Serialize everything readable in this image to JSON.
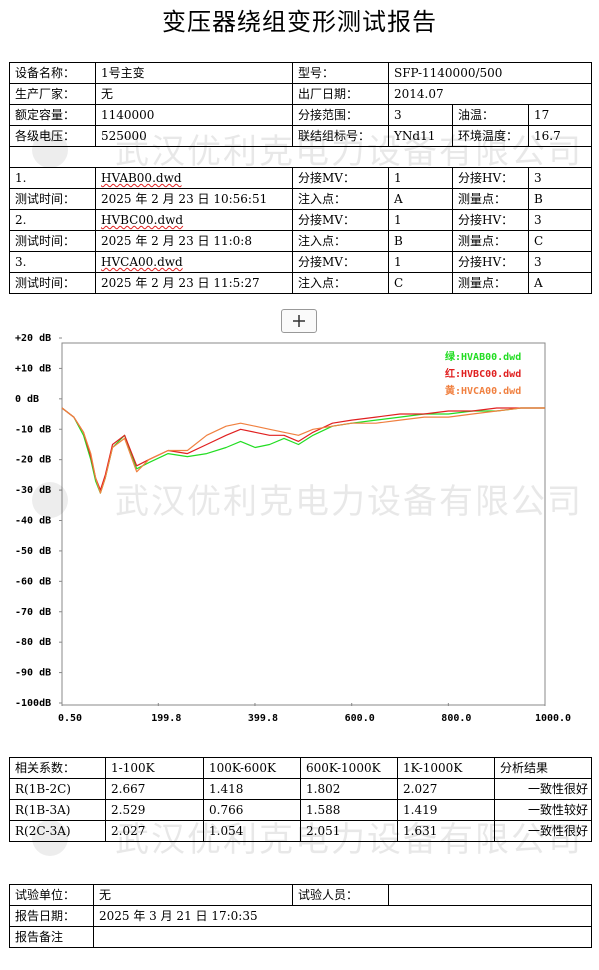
{
  "title": "变压器绕组变形测试报告",
  "watermark": "武汉优利克电力设备有限公司",
  "info_table": {
    "rows": [
      [
        "设备名称：",
        "1号主变",
        "型号：",
        "SFP-1140000/500"
      ],
      [
        "生产厂家：",
        "无",
        "出厂日期：",
        "2014.07"
      ],
      [
        "额定容量：",
        "1140000",
        "分接范围：",
        "3",
        "油温：",
        "17"
      ],
      [
        "各级电压：",
        "525000",
        "联结组标号：",
        "YNd11",
        "环境温度：",
        "16.7"
      ],
      [],
      [
        "1.",
        "HVAB00.dwd",
        "分接MV：",
        "1",
        "分接HV：",
        "3"
      ],
      [
        "测试时间：",
        "2025 年 2 月 23 日 10:56:51",
        "注入点：",
        "A",
        "测量点：",
        "B"
      ],
      [
        "2.",
        "HVBC00.dwd",
        "分接MV：",
        "1",
        "分接HV：",
        "3"
      ],
      [
        "测试时间：",
        "2025 年 2 月 23 日 11:0:8",
        "注入点：",
        "B",
        "测量点：",
        "C"
      ],
      [
        "3.",
        "HVCA00.dwd",
        "分接MV：",
        "1",
        "分接HV：",
        "3"
      ],
      [
        "测试时间：",
        "2025 年 2 月 23 日 11:5:27",
        "注入点：",
        "C",
        "测量点：",
        "A"
      ]
    ]
  },
  "chart_data": {
    "type": "line",
    "x": [
      0.5,
      25,
      45,
      60,
      70,
      80,
      90,
      105,
      130,
      155,
      180,
      220,
      260,
      300,
      340,
      370,
      400,
      430,
      460,
      490,
      520,
      560,
      600,
      650,
      700,
      750,
      800,
      850,
      900,
      950,
      1000
    ],
    "series": [
      {
        "name": "绿:HVAB00.dwd",
        "color": "#22dd22",
        "values": [
          -3,
          -6,
          -12,
          -20,
          -27,
          -31,
          -26,
          -16,
          -12,
          -23,
          -21,
          -18,
          -19,
          -18,
          -16,
          -14,
          -16,
          -15,
          -13,
          -15,
          -12,
          -9,
          -8,
          -7,
          -6,
          -5,
          -5,
          -4,
          -4,
          -3,
          -3
        ]
      },
      {
        "name": "红:HVBC00.dwd",
        "color": "#e02020",
        "values": [
          -3,
          -6,
          -11,
          -19,
          -26,
          -30,
          -25,
          -15,
          -12,
          -22,
          -20,
          -17,
          -18,
          -15,
          -12,
          -10,
          -11,
          -12,
          -12,
          -14,
          -11,
          -8,
          -7,
          -6,
          -5,
          -5,
          -4,
          -4,
          -3,
          -3,
          -3
        ]
      },
      {
        "name": "黄:HVCA00.dwd",
        "color": "#f08040",
        "values": [
          -3,
          -6,
          -11,
          -18,
          -26,
          -31,
          -26,
          -16,
          -13,
          -24,
          -20,
          -17,
          -17,
          -12,
          -9,
          -8,
          -9,
          -10,
          -11,
          -12,
          -10,
          -9,
          -8,
          -8,
          -7,
          -6,
          -6,
          -5,
          -4,
          -3,
          -3
        ]
      }
    ],
    "xlim": [
      0.5,
      1000
    ],
    "xticks": [
      {
        "value": 0.5,
        "label": "0.50"
      },
      199.8,
      399.8,
      {
        "value": 600,
        "label": "600.0"
      },
      {
        "value": 800,
        "label": "800.0"
      },
      {
        "value": 1000,
        "label": "1000.0"
      }
    ],
    "ylim": [
      -100,
      20
    ],
    "yticks": [
      {
        "value": 20,
        "label": "+20 dB"
      },
      {
        "value": 10,
        "label": "+10 dB"
      },
      {
        "value": 0,
        "label": "0 dB"
      },
      {
        "value": -10,
        "label": "-10 dB"
      },
      {
        "value": -20,
        "label": "-20 dB"
      },
      {
        "value": -30,
        "label": "-30 dB"
      },
      {
        "value": -40,
        "label": "-40 dB"
      },
      {
        "value": -50,
        "label": "-50 dB"
      },
      {
        "value": -60,
        "label": "-60 dB"
      },
      {
        "value": -70,
        "label": "-70 dB"
      },
      {
        "value": -80,
        "label": "-80 dB"
      },
      {
        "value": -90,
        "label": "-90 dB"
      },
      {
        "value": -100,
        "label": "-100dB"
      }
    ],
    "grid": false
  },
  "analysis_table": {
    "header": [
      "相关系数：",
      "1-100K",
      "100K-600K",
      "600K-1000K",
      "1K-1000K",
      "分析结果"
    ],
    "rows": [
      [
        "R(1B-2C)",
        2.667,
        1.418,
        1.802,
        2.027,
        "一致性很好"
      ],
      [
        "R(1B-3A)",
        2.529,
        0.766,
        1.588,
        1.419,
        "一致性较好"
      ],
      [
        "R(2C-3A)",
        2.027,
        1.054,
        2.051,
        1.631,
        "一致性很好"
      ]
    ]
  },
  "footer_table": {
    "rows": [
      [
        "试验单位：",
        "无",
        "试验人员："
      ],
      [
        "报告日期：",
        "2025 年 3 月 21 日 17:0:35"
      ],
      [
        "报告备注"
      ]
    ]
  }
}
